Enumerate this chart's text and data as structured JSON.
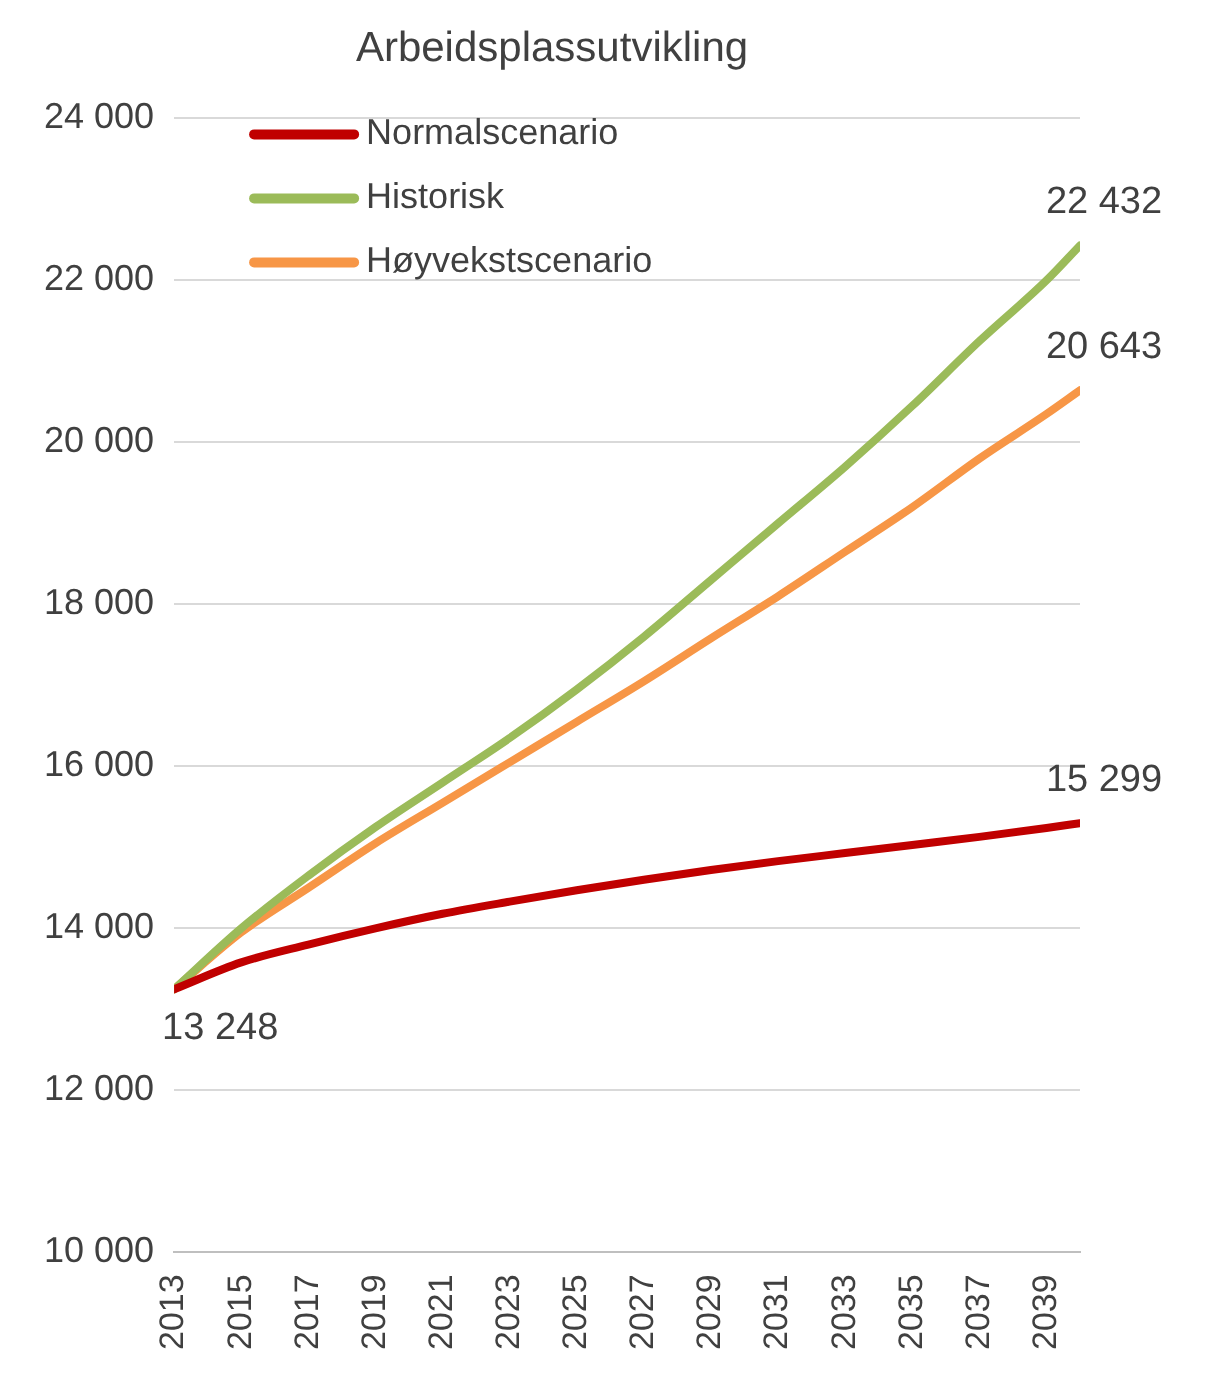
{
  "chart_data": {
    "type": "line",
    "title": "Arbeidsplassutvikling",
    "xlim": [
      2013,
      2040
    ],
    "xticks": [
      2013,
      2015,
      2017,
      2019,
      2021,
      2023,
      2025,
      2027,
      2029,
      2031,
      2033,
      2035,
      2037,
      2039
    ],
    "ylim": [
      10000,
      24000
    ],
    "yticks": [
      {
        "value": 10000,
        "label": "10 000"
      },
      {
        "value": 12000,
        "label": "12 000"
      },
      {
        "value": 14000,
        "label": "14 000"
      },
      {
        "value": 16000,
        "label": "16 000"
      },
      {
        "value": 18000,
        "label": "18 000"
      },
      {
        "value": 20000,
        "label": "20 000"
      },
      {
        "value": 22000,
        "label": "22 000"
      },
      {
        "value": 24000,
        "label": "24 000"
      }
    ],
    "grid": "y",
    "legend": "top left",
    "marker": "none",
    "line_style": "solid",
    "series": [
      {
        "name": "Normalscenario",
        "color": "#c00000",
        "x": [
          2013,
          2015,
          2017,
          2019,
          2021,
          2023,
          2025,
          2027,
          2029,
          2031,
          2033,
          2035,
          2037,
          2039,
          2040
        ],
        "values": [
          13248,
          13580,
          13800,
          14000,
          14180,
          14330,
          14470,
          14600,
          14720,
          14830,
          14930,
          15030,
          15130,
          15240,
          15299
        ],
        "value_labels": [
          "13 248",
          null,
          null,
          null,
          null,
          null,
          null,
          null,
          null,
          null,
          null,
          null,
          null,
          null,
          "15 299"
        ]
      },
      {
        "name": "Historisk",
        "color": "#9bbb59",
        "x": [
          2013,
          2015,
          2017,
          2019,
          2021,
          2023,
          2025,
          2027,
          2029,
          2031,
          2033,
          2035,
          2037,
          2039,
          2040
        ],
        "values": [
          13248,
          14000,
          14650,
          15250,
          15800,
          16350,
          16950,
          17600,
          18300,
          19000,
          19700,
          20450,
          21250,
          22000,
          22432
        ],
        "value_labels": [
          null,
          null,
          null,
          null,
          null,
          null,
          null,
          null,
          null,
          null,
          null,
          null,
          null,
          null,
          "22 432"
        ]
      },
      {
        "name": "Høyvekstscenario",
        "color": "#f79646",
        "x": [
          2013,
          2015,
          2017,
          2019,
          2021,
          2023,
          2025,
          2027,
          2029,
          2031,
          2033,
          2035,
          2037,
          2039,
          2040
        ],
        "values": [
          13248,
          13950,
          14500,
          15050,
          15550,
          16050,
          16550,
          17050,
          17580,
          18100,
          18650,
          19200,
          19800,
          20350,
          20643
        ],
        "value_labels": [
          null,
          null,
          null,
          null,
          null,
          null,
          null,
          null,
          null,
          null,
          null,
          null,
          null,
          null,
          "20 643"
        ]
      }
    ]
  }
}
